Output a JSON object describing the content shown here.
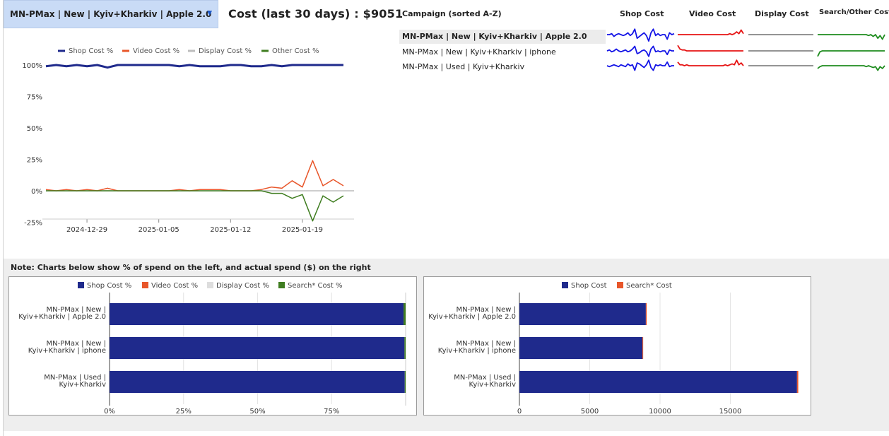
{
  "header": {
    "selected_campaign": "MN-PMax | New | Kyiv+Kharkiv | Apple 2.0",
    "cost_title": "Cost (last 30 days) : $9051"
  },
  "table": {
    "campaign_header": "Campaign (sorted A-Z)",
    "columns": [
      "Shop Cost",
      "Video Cost",
      "Display Cost",
      "Search/Other Cost"
    ],
    "rows": [
      {
        "name": "MN-PMax | New | Kyiv+Kharkiv | Apple 2.0",
        "selected": true
      },
      {
        "name": "MN-PMax | New | Kyiv+Kharkiv | iphone",
        "selected": false
      },
      {
        "name": "MN-PMax | Used | Kyiv+Kharkiv",
        "selected": false
      }
    ]
  },
  "note": "Note: Charts below show % of spend on the left, and actual spend ($) on the right",
  "colors": {
    "shop": "#1f2a8c",
    "video": "#e8562a",
    "display": "#bdbdbd",
    "other": "#3f7d20",
    "spark_shop": "#1414e6",
    "spark_video": "#e61414",
    "spark_display": "#555555",
    "spark_other": "#1e8c1e"
  },
  "chart_data": [
    {
      "type": "line",
      "legend": [
        "Shop Cost %",
        "Video Cost %",
        "Display Cost %",
        "Other Cost %"
      ],
      "x_ticks": [
        "2024-12-29",
        "2025-01-05",
        "2025-01-12",
        "2025-01-19"
      ],
      "y_ticks": [
        "100%",
        "75%",
        "50%",
        "25%",
        "0%",
        "-25%"
      ],
      "ylim": [
        -30,
        105
      ],
      "x": [
        0,
        1,
        2,
        3,
        4,
        5,
        6,
        7,
        8,
        9,
        10,
        11,
        12,
        13,
        14,
        15,
        16,
        17,
        18,
        19,
        20,
        21,
        22,
        23,
        24,
        25,
        26,
        27,
        28,
        29
      ],
      "series": [
        {
          "name": "Shop Cost %",
          "values": [
            99,
            100,
            99,
            100,
            99,
            100,
            98,
            100,
            100,
            100,
            100,
            100,
            100,
            99,
            100,
            99,
            99,
            99,
            100,
            100,
            99,
            99,
            100,
            99,
            100,
            100,
            100,
            100,
            100,
            100
          ]
        },
        {
          "name": "Video Cost %",
          "values": [
            1,
            0,
            1,
            0,
            1,
            0,
            2,
            0,
            0,
            0,
            0,
            0,
            0,
            1,
            0,
            1,
            1,
            1,
            0,
            0,
            0,
            1,
            3,
            2,
            8,
            3,
            24,
            4,
            9,
            4
          ]
        },
        {
          "name": "Display Cost %",
          "values": [
            0,
            0,
            0,
            0,
            0,
            0,
            0,
            0,
            0,
            0,
            0,
            0,
            0,
            0,
            0,
            0,
            0,
            0,
            0,
            0,
            0,
            0,
            0,
            0,
            0,
            0,
            0,
            0,
            0,
            0
          ]
        },
        {
          "name": "Other Cost %",
          "values": [
            0,
            0,
            0,
            0,
            0,
            0,
            0,
            0,
            0,
            0,
            0,
            0,
            0,
            0,
            0,
            0,
            0,
            0,
            0,
            0,
            0,
            0,
            -2,
            -2,
            -6,
            -3,
            -24,
            -4,
            -9,
            -4
          ]
        }
      ]
    },
    {
      "type": "bar",
      "orientation": "horizontal",
      "stacked": true,
      "legend": [
        "Shop Cost %",
        "Video Cost %",
        "Display Cost %",
        "Search* Cost %"
      ],
      "categories": [
        "MN-PMax | New | Kyiv+Kharkiv | Apple 2.0",
        "MN-PMax | New | Kyiv+Kharkiv | iphone",
        "MN-PMax | Used | Kyiv+Kharkiv"
      ],
      "category_lines": [
        [
          "MN-PMax | New |",
          "Kyiv+Kharkiv | Apple 2.0"
        ],
        [
          "MN-PMax | New |",
          "Kyiv+Kharkiv | iphone"
        ],
        [
          "MN-PMax | Used |",
          "Kyiv+Kharkiv"
        ]
      ],
      "series": [
        {
          "name": "Shop Cost %",
          "values": [
            99.3,
            99.6,
            99.7
          ]
        },
        {
          "name": "Video Cost %",
          "values": [
            0,
            0,
            0
          ]
        },
        {
          "name": "Display Cost %",
          "values": [
            0,
            0,
            0
          ]
        },
        {
          "name": "Search* Cost %",
          "values": [
            0.7,
            0.4,
            0.3
          ]
        }
      ],
      "x_ticks": [
        "0%",
        "25%",
        "50%",
        "75%"
      ],
      "xlim": [
        0,
        100
      ]
    },
    {
      "type": "bar",
      "orientation": "horizontal",
      "stacked": true,
      "legend": [
        "Shop Cost",
        "Search* Cost"
      ],
      "categories": [
        "MN-PMax | New | Kyiv+Kharkiv | Apple 2.0",
        "MN-PMax | New | Kyiv+Kharkiv | iphone",
        "MN-PMax | Used | Kyiv+Kharkiv"
      ],
      "category_lines": [
        [
          "MN-PMax | New |",
          "Kyiv+Kharkiv | Apple 2.0"
        ],
        [
          "MN-PMax | New |",
          "Kyiv+Kharkiv | iphone"
        ],
        [
          "MN-PMax | Used |",
          "Kyiv+Kharkiv"
        ]
      ],
      "series": [
        {
          "name": "Shop Cost",
          "values": [
            8990,
            8750,
            19740
          ]
        },
        {
          "name": "Search* Cost",
          "values": [
            61,
            40,
            90
          ]
        }
      ],
      "x_ticks": [
        "0",
        "5000",
        "10000",
        "15000"
      ],
      "x_tick_values": [
        0,
        5000,
        10000,
        15000
      ],
      "xlim": [
        0,
        19950
      ]
    }
  ],
  "sparklines": {
    "shop": [
      [
        0,
        0,
        1,
        -2,
        0,
        1,
        0,
        -1,
        0,
        2,
        -1,
        1,
        6,
        -4,
        -2,
        0,
        2,
        -1,
        -7,
        2,
        6,
        -1,
        1,
        -1,
        0,
        0,
        -5,
        2,
        0,
        1
      ],
      [
        0,
        1,
        -1,
        0,
        2,
        0,
        -1,
        0,
        1,
        -1,
        0,
        2,
        5,
        -3,
        -2,
        0,
        1,
        -1,
        -6,
        2,
        5,
        -1,
        0,
        -1,
        0,
        0,
        -4,
        1,
        0,
        0
      ],
      [
        0,
        -1,
        0,
        1,
        0,
        -1,
        1,
        0,
        -1,
        2,
        0,
        1,
        -5,
        3,
        2,
        0,
        -2,
        1,
        6,
        -2,
        -5,
        1,
        0,
        1,
        0,
        0,
        4,
        -1,
        0,
        0
      ]
    ],
    "video": [
      [
        0,
        0,
        0,
        0,
        0,
        0,
        0,
        0,
        0,
        0,
        0,
        0,
        0,
        0,
        0,
        0,
        0,
        0,
        0,
        0,
        0,
        0,
        0,
        1,
        0,
        1,
        3,
        1,
        5,
        1
      ],
      [
        6,
        2,
        1,
        1,
        0,
        0,
        0,
        0,
        0,
        0,
        0,
        0,
        0,
        0,
        0,
        0,
        0,
        0,
        0,
        0,
        0,
        0,
        0,
        0,
        0,
        0,
        0,
        0,
        0,
        0
      ],
      [
        4,
        1,
        1,
        0,
        1,
        0,
        0,
        0,
        0,
        0,
        0,
        0,
        0,
        0,
        0,
        0,
        0,
        0,
        0,
        0,
        0,
        1,
        0,
        1,
        2,
        1,
        6,
        1,
        3,
        0
      ]
    ],
    "display": [
      [
        0,
        0
      ],
      [
        0,
        0
      ],
      [
        0,
        0
      ]
    ],
    "other": [
      [
        0,
        0,
        0,
        0,
        0,
        0,
        0,
        0,
        0,
        0,
        0,
        0,
        0,
        0,
        0,
        0,
        0,
        0,
        0,
        0,
        0,
        0,
        -1,
        0,
        -2,
        0,
        -4,
        -1,
        -5,
        0
      ],
      [
        -6,
        -1,
        0,
        0,
        0,
        0,
        0,
        0,
        0,
        0,
        0,
        0,
        0,
        0,
        0,
        0,
        0,
        0,
        0,
        0,
        0,
        0,
        0,
        0,
        0,
        0,
        0,
        0,
        0,
        0
      ],
      [
        -3,
        -1,
        0,
        0,
        0,
        0,
        0,
        0,
        0,
        0,
        0,
        0,
        0,
        0,
        0,
        0,
        0,
        0,
        0,
        0,
        0,
        -1,
        0,
        -1,
        -2,
        -1,
        -5,
        -1,
        -3,
        0
      ]
    ]
  }
}
